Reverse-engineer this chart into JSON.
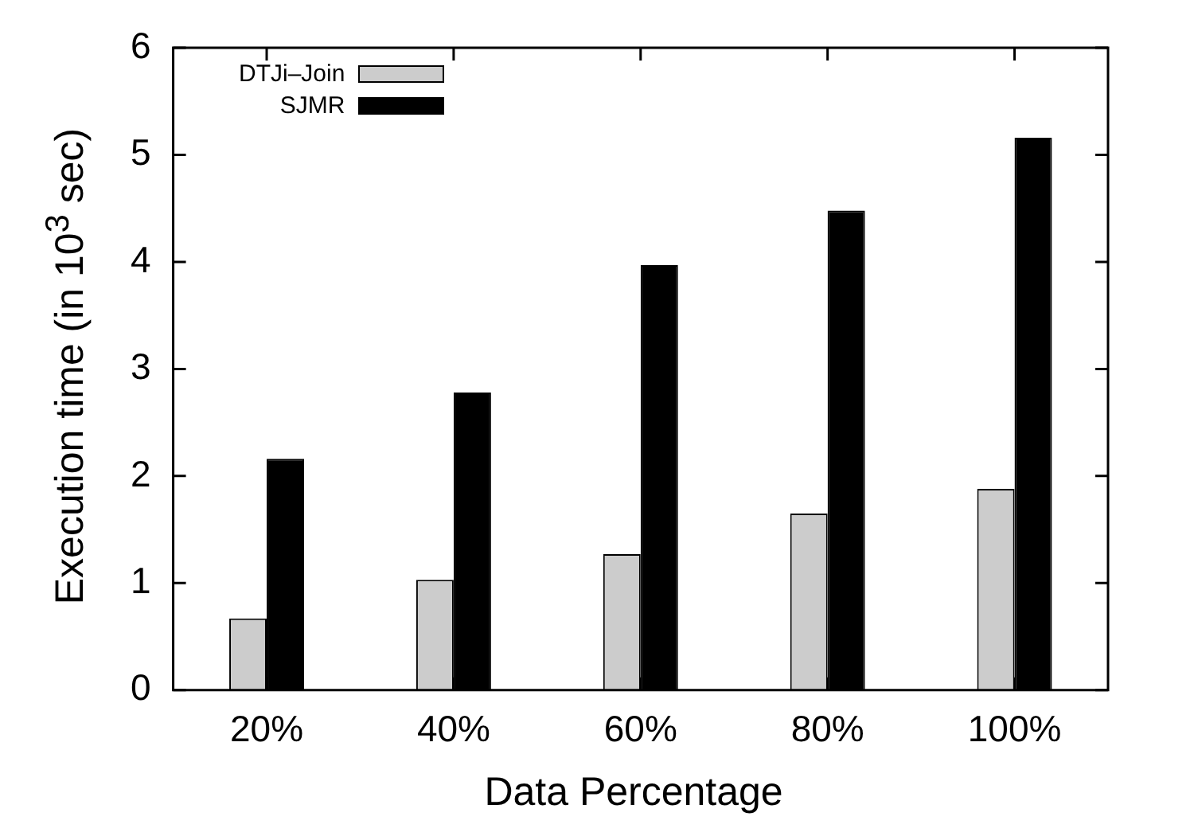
{
  "chart_data": {
    "type": "bar",
    "xlabel": "Data Percentage",
    "ylabel": "Execution time (in 10$^{3}$ sec)",
    "categories": [
      "20%",
      "40%",
      "60%",
      "80%",
      "100%"
    ],
    "series": [
      {
        "name": "DTJi–Join",
        "color": "#cccccc",
        "values": [
          0.67,
          1.03,
          1.27,
          1.65,
          1.88
        ]
      },
      {
        "name": "SJMR",
        "color": "#000000",
        "values": [
          2.16,
          2.78,
          3.97,
          4.48,
          5.16
        ]
      }
    ],
    "ylim": [
      0,
      6
    ],
    "yticks": [
      0,
      1,
      2,
      3,
      4,
      5,
      6
    ],
    "grid": false,
    "legend": "top left"
  }
}
